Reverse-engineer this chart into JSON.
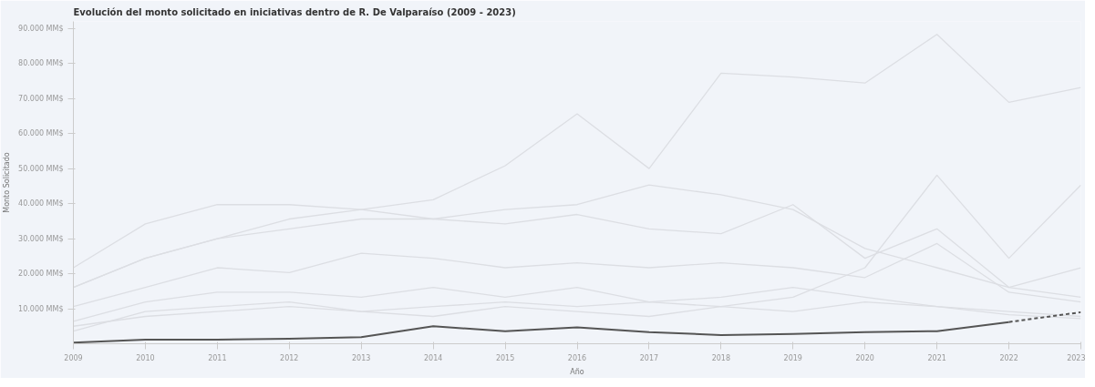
{
  "chart_data": {
    "type": "line",
    "title": "Evolución del monto solicitado en iniciativas dentro de R. De Valparaíso (2009 - 2023)",
    "xlabel": "Año",
    "ylabel": "Monto Solicitado",
    "x": [
      2009,
      2010,
      2011,
      2012,
      2013,
      2014,
      2015,
      2016,
      2017,
      2018,
      2019,
      2020,
      2021,
      2022,
      2023
    ],
    "xlim": [
      2009,
      2023
    ],
    "xticks": [
      2009,
      2010,
      2011,
      2012,
      2013,
      2014,
      2015,
      2016,
      2017,
      2018,
      2019,
      2020,
      2021,
      2022,
      2023
    ],
    "ylim": [
      0,
      92000
    ],
    "yticks": [
      {
        "value": 10000,
        "label": "10.000 MM$"
      },
      {
        "value": 20000,
        "label": "20.000 MM$"
      },
      {
        "value": 30000,
        "label": "30.000 MM$"
      },
      {
        "value": 40000,
        "label": "40.000 MM$"
      },
      {
        "value": 50000,
        "label": "50.000 MM$"
      },
      {
        "value": 60000,
        "label": "60.000 MM$"
      },
      {
        "value": 70000,
        "label": "70.000 MM$"
      },
      {
        "value": 80000,
        "label": "80.000 MM$"
      },
      {
        "value": 90000,
        "label": "90.000 MM$"
      }
    ],
    "grid": false,
    "line_style": "solid",
    "series": [
      {
        "color": "#dcdee3",
        "values": [
          16100,
          24400,
          30000,
          35600,
          38300,
          41100,
          50800,
          65600,
          50000,
          77200,
          76100,
          74400,
          88300,
          68900,
          73100
        ]
      },
      {
        "color": "#dcdee3",
        "values": [
          21700,
          34200,
          39700,
          39700,
          38300,
          35600,
          38300,
          39700,
          45300,
          42500,
          38300,
          27200,
          21700,
          16100,
          21700
        ]
      },
      {
        "color": "#dcdee3",
        "values": [
          5000,
          7800,
          9200,
          10600,
          9200,
          10600,
          11900,
          10600,
          11900,
          10600,
          13300,
          21700,
          48100,
          24400,
          45300
        ]
      },
      {
        "color": "#dcdee3",
        "values": [
          16100,
          24400,
          30000,
          32800,
          35600,
          35600,
          34200,
          36900,
          32800,
          31400,
          39700,
          24400,
          32800,
          16100,
          13300
        ]
      },
      {
        "color": "#dcdee3",
        "values": [
          10600,
          16100,
          21700,
          20300,
          25800,
          24400,
          21700,
          23100,
          21700,
          23100,
          21700,
          18900,
          28600,
          14700,
          11900
        ]
      },
      {
        "color": "#dcdee3",
        "values": [
          6400,
          11900,
          14700,
          14700,
          13300,
          16100,
          13300,
          16100,
          11900,
          13300,
          16100,
          13300,
          10600,
          9200,
          7800
        ]
      },
      {
        "color": "#dcdee3",
        "values": [
          3600,
          9200,
          10600,
          11900,
          9200,
          7800,
          10600,
          9200,
          7800,
          10600,
          9200,
          11900,
          10600,
          8300,
          7200
        ]
      },
      {
        "color": "#555555",
        "values": [
          300,
          1200,
          1200,
          1400,
          1900,
          5000,
          3600,
          4700,
          3300,
          2500,
          2800,
          3300,
          3600,
          6200,
          null
        ]
      },
      {
        "color": "#555555",
        "line_style": "dashed",
        "x": [
          2022,
          2023
        ],
        "values": [
          6200,
          9000
        ]
      }
    ]
  }
}
